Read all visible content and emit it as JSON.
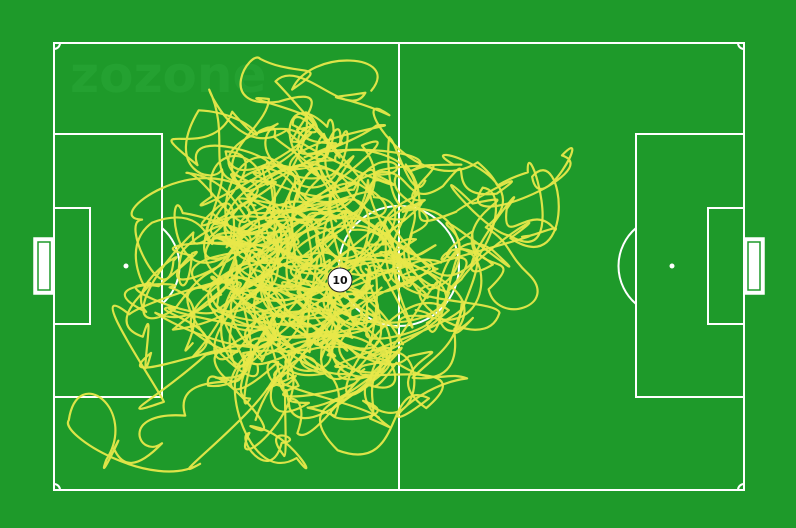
{
  "watermark": "zozone",
  "player": {
    "number": "10"
  },
  "colors": {
    "pitch": "#1e9a2a",
    "lines": "#ffffff",
    "trail": "#e8e84a"
  }
}
